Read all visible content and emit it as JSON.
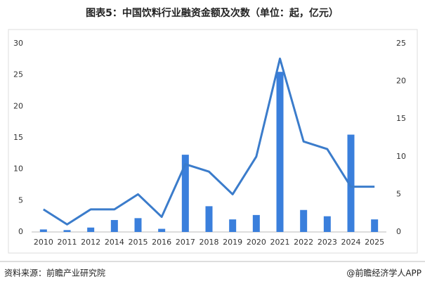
{
  "chart_data": {
    "type": "bar_line",
    "title": "图表5：中国饮料行业融资金额及次数（单位：起，亿元）",
    "categories": [
      "2010",
      "2011",
      "2012",
      "2014",
      "2015",
      "2016",
      "2017",
      "2018",
      "2019",
      "2020",
      "2021",
      "2022",
      "2023",
      "2024",
      "2025"
    ],
    "series": [
      {
        "type": "bar",
        "color": "#3a7fdc",
        "values": [
          0.4,
          0.3,
          0.7,
          1.9,
          2.2,
          0.5,
          12.3,
          4.1,
          2.0,
          2.7,
          25.5,
          3.5,
          2.5,
          15.5,
          2.0
        ]
      },
      {
        "type": "line",
        "axis": "y2",
        "color": "#3b7ccb",
        "values": [
          3,
          1,
          3,
          3,
          5,
          2,
          9,
          8,
          5,
          10,
          23,
          12,
          11,
          6,
          6
        ]
      }
    ],
    "ylim": [
      0,
      30
    ],
    "yticks": [
      0,
      5,
      10,
      15,
      20,
      25,
      30
    ],
    "y2lim": [
      0,
      25
    ],
    "y2ticks": [
      0,
      5,
      10,
      15,
      20,
      25
    ],
    "source": "资料来源：前瞻产业研究院",
    "credit": "@前瞻经济学人APP"
  }
}
